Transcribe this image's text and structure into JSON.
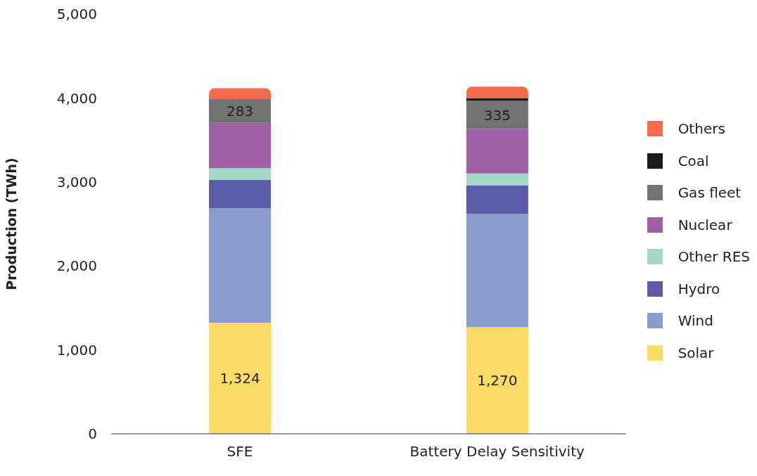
{
  "chart_data": {
    "type": "bar",
    "stacked": true,
    "ylabel": "Production (TWh)",
    "categories": [
      "SFE",
      "Battery Delay Sensitivity"
    ],
    "series": [
      {
        "name": "Solar",
        "color": "#fcdc66",
        "values": [
          1324,
          1270
        ],
        "value_labels": [
          "1,324",
          "1,270"
        ]
      },
      {
        "name": "Wind",
        "color": "#8a9bcd",
        "values": [
          1360,
          1350
        ]
      },
      {
        "name": "Hydro",
        "color": "#5a5ba8",
        "values": [
          340,
          340
        ]
      },
      {
        "name": "Other RES",
        "color": "#a3d8c6",
        "values": [
          140,
          140
        ]
      },
      {
        "name": "Nuclear",
        "color": "#a060a5",
        "values": [
          540,
          530
        ]
      },
      {
        "name": "Gas fleet",
        "color": "#737373",
        "values": [
          283,
          335
        ],
        "value_labels": [
          "283",
          "335"
        ]
      },
      {
        "name": "Coal",
        "color": "#1e1a1a",
        "values": [
          0,
          30
        ]
      },
      {
        "name": "Others",
        "color": "#f26b4c",
        "values": [
          130,
          140
        ]
      }
    ],
    "ylim": [
      0,
      5000
    ],
    "yticks": [
      0,
      {
        "value": 1000,
        "label": "1,000"
      },
      {
        "value": 2000,
        "label": "2,000"
      },
      {
        "value": 3000,
        "label": "3,000"
      },
      {
        "value": 4000,
        "label": "4,000"
      },
      {
        "value": 5000,
        "label": "5,000"
      }
    ],
    "grid": false,
    "legend": "right"
  }
}
